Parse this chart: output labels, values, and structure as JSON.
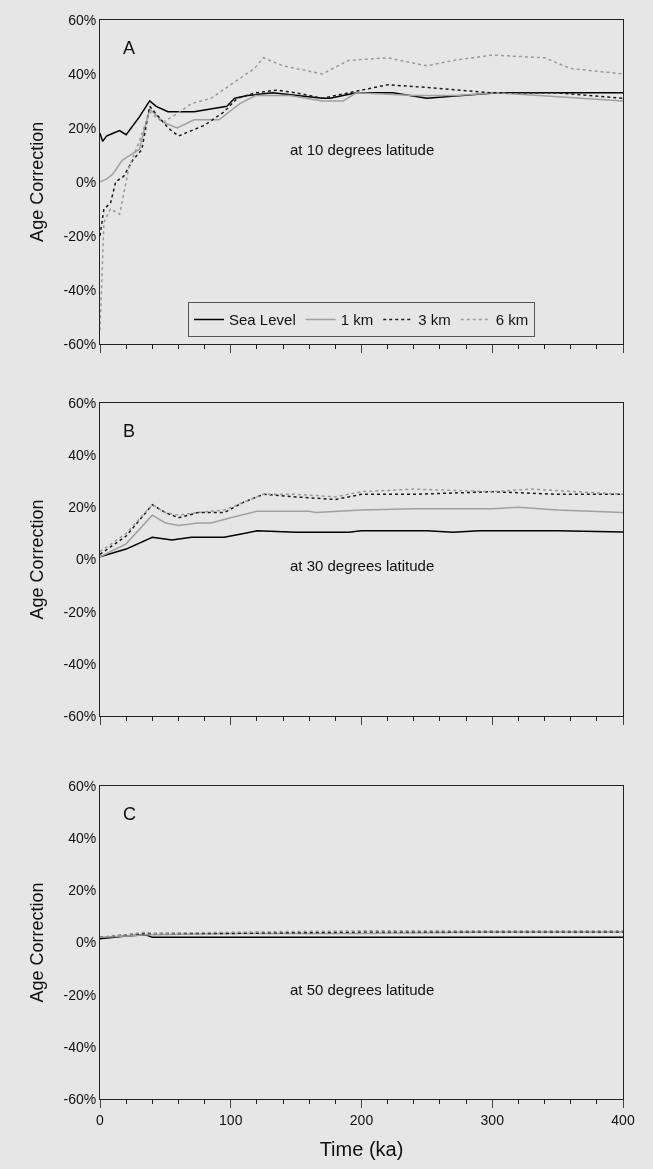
{
  "chart_data": [
    {
      "type": "line",
      "title": "A",
      "ylabel": "Age Correction",
      "annotations": [
        "at 10 degrees latitude"
      ],
      "xlim": [
        0,
        400
      ],
      "xticks": [
        0,
        100,
        200,
        300,
        400
      ],
      "ylim": [
        -60,
        60
      ],
      "yticks": [
        {
          "value": -60,
          "label": "-60%"
        },
        {
          "value": -40,
          "label": "-40%"
        },
        {
          "value": -20,
          "label": "-20%"
        },
        {
          "value": 0,
          "label": "0%"
        },
        {
          "value": 20,
          "label": "20%"
        },
        {
          "value": 40,
          "label": "40%"
        },
        {
          "value": 60,
          "label": "60%"
        }
      ],
      "tick_labels": "y",
      "grid": false,
      "legend": "bottom",
      "series": [
        {
          "name": "Sea Level",
          "color": "#000000",
          "line_style": "solid",
          "x": [
            0,
            2,
            5,
            10,
            15,
            20,
            30,
            38,
            43,
            52,
            72,
            97,
            103,
            113,
            132,
            170,
            176,
            196,
            224,
            250,
            304,
            400
          ],
          "values": [
            18,
            15,
            17,
            18,
            19,
            17.5,
            24,
            30,
            28,
            26,
            26,
            28,
            31,
            32,
            33,
            31,
            31,
            33,
            33,
            31,
            33,
            33
          ]
        },
        {
          "name": "1 km",
          "color": "#a0a0a0",
          "line_style": "solid",
          "x": [
            0,
            5,
            10,
            17,
            30,
            38,
            49,
            59,
            72,
            91,
            107,
            119,
            145,
            170,
            186,
            196,
            240,
            272,
            304,
            400
          ],
          "values": [
            0,
            1,
            3,
            8,
            12,
            27,
            22,
            20,
            23,
            23,
            29,
            32,
            32,
            30,
            30,
            33,
            32,
            32,
            33,
            30
          ]
        },
        {
          "name": "3 km",
          "color": "#1a1a1a",
          "line_style": "dotted",
          "x": [
            0,
            3,
            8,
            12,
            18,
            25,
            32,
            38,
            45,
            52,
            60,
            70,
            80,
            95,
            105,
            119,
            135,
            150,
            170,
            200,
            220,
            250,
            300,
            350,
            400
          ],
          "values": [
            -20,
            -10,
            -8,
            0,
            2,
            8,
            12,
            28,
            24,
            20,
            17,
            19,
            21,
            26,
            31,
            33,
            34,
            33,
            31,
            34,
            36,
            35,
            33,
            33,
            31
          ]
        },
        {
          "name": "6 km",
          "color": "#9a9a9a",
          "line_style": "dotted",
          "x": [
            0,
            3,
            8,
            15,
            22,
            30,
            38,
            48,
            58,
            70,
            85,
            100,
            118,
            125,
            140,
            170,
            190,
            220,
            250,
            270,
            300,
            340,
            360,
            400
          ],
          "values": [
            -55,
            -15,
            -10,
            -12,
            5,
            15,
            26,
            22,
            25,
            29,
            31,
            36,
            42,
            46,
            43,
            40,
            45,
            46,
            43,
            45,
            47,
            46,
            42,
            40
          ]
        }
      ]
    },
    {
      "type": "line",
      "title": "B",
      "ylabel": "Age Correction",
      "annotations": [
        "at 30 degrees latitude"
      ],
      "xlim": [
        0,
        400
      ],
      "xticks": [
        0,
        100,
        200,
        300,
        400
      ],
      "ylim": [
        -60,
        60
      ],
      "yticks": [
        {
          "value": -60,
          "label": "-60%"
        },
        {
          "value": -40,
          "label": "-40%"
        },
        {
          "value": -20,
          "label": "-20%"
        },
        {
          "value": 0,
          "label": "0%"
        },
        {
          "value": 20,
          "label": "20%"
        },
        {
          "value": 40,
          "label": "40%"
        },
        {
          "value": 60,
          "label": "60%"
        }
      ],
      "tick_labels": "y",
      "grid": false,
      "series": [
        {
          "color": "#000000",
          "line_style": "solid",
          "x": [
            0,
            20,
            40,
            55,
            70,
            95,
            110,
            120,
            150,
            190,
            200,
            250,
            270,
            290,
            350,
            400
          ],
          "values": [
            1,
            4,
            8.5,
            7.5,
            8.5,
            8.5,
            10,
            11,
            10.5,
            10.5,
            11,
            11,
            10.5,
            11,
            11,
            10.5
          ]
        },
        {
          "color": "#a0a0a0",
          "line_style": "solid",
          "x": [
            0,
            20,
            40,
            50,
            60,
            75,
            85,
            100,
            120,
            160,
            165,
            200,
            240,
            300,
            320,
            350,
            400
          ],
          "values": [
            1,
            6,
            17,
            14,
            13,
            14,
            14,
            16,
            18.5,
            18.5,
            18,
            19,
            19.5,
            19.5,
            20,
            19,
            18
          ]
        },
        {
          "color": "#1a1a1a",
          "line_style": "dotted",
          "x": [
            0,
            20,
            40,
            50,
            60,
            75,
            95,
            110,
            125,
            150,
            180,
            200,
            240,
            300,
            350,
            400
          ],
          "values": [
            2,
            9,
            21,
            18,
            16,
            18,
            18,
            22,
            25,
            24,
            23,
            25,
            25,
            26,
            25,
            25
          ]
        },
        {
          "color": "#9a9a9a",
          "line_style": "dotted",
          "x": [
            0,
            20,
            40,
            50,
            60,
            75,
            95,
            110,
            125,
            150,
            180,
            200,
            240,
            300,
            330,
            400
          ],
          "values": [
            3,
            10,
            21,
            18,
            17,
            18,
            19,
            22,
            25,
            25,
            24,
            26,
            27,
            26,
            27,
            25
          ]
        }
      ]
    },
    {
      "type": "line",
      "title": "C",
      "ylabel": "Age Correction",
      "xlabel": "Time (ka)",
      "annotations": [
        "at 50 degrees latitude"
      ],
      "xlim": [
        0,
        400
      ],
      "xticks": [
        0,
        100,
        200,
        300,
        400
      ],
      "ylim": [
        -60,
        60
      ],
      "yticks": [
        {
          "value": -60,
          "label": "-60%"
        },
        {
          "value": -40,
          "label": "-40%"
        },
        {
          "value": -20,
          "label": "-20%"
        },
        {
          "value": 0,
          "label": "0%"
        },
        {
          "value": 20,
          "label": "20%"
        },
        {
          "value": 40,
          "label": "40%"
        },
        {
          "value": 60,
          "label": "60%"
        }
      ],
      "grid": false,
      "series": [
        {
          "color": "#000000",
          "line_style": "solid",
          "x": [
            0,
            20,
            35,
            40,
            100,
            200,
            300,
            400
          ],
          "values": [
            1.5,
            2.5,
            3,
            2,
            2,
            2,
            2,
            2
          ]
        },
        {
          "color": "#a0a0a0",
          "line_style": "solid",
          "x": [
            0,
            20,
            35,
            40,
            100,
            200,
            300,
            400
          ],
          "values": [
            2,
            2.5,
            3,
            3,
            3.5,
            3.5,
            4,
            4
          ]
        },
        {
          "color": "#1a1a1a",
          "line_style": "dotted",
          "x": [
            0,
            20,
            35,
            40,
            100,
            200,
            300,
            400
          ],
          "values": [
            2,
            3,
            3.5,
            3.5,
            3.5,
            4,
            4,
            4
          ]
        },
        {
          "color": "#9a9a9a",
          "line_style": "dotted",
          "x": [
            0,
            20,
            35,
            40,
            100,
            200,
            300,
            400
          ],
          "values": [
            2,
            3,
            4,
            3.5,
            4,
            4.5,
            4.5,
            4.5
          ]
        }
      ]
    }
  ]
}
